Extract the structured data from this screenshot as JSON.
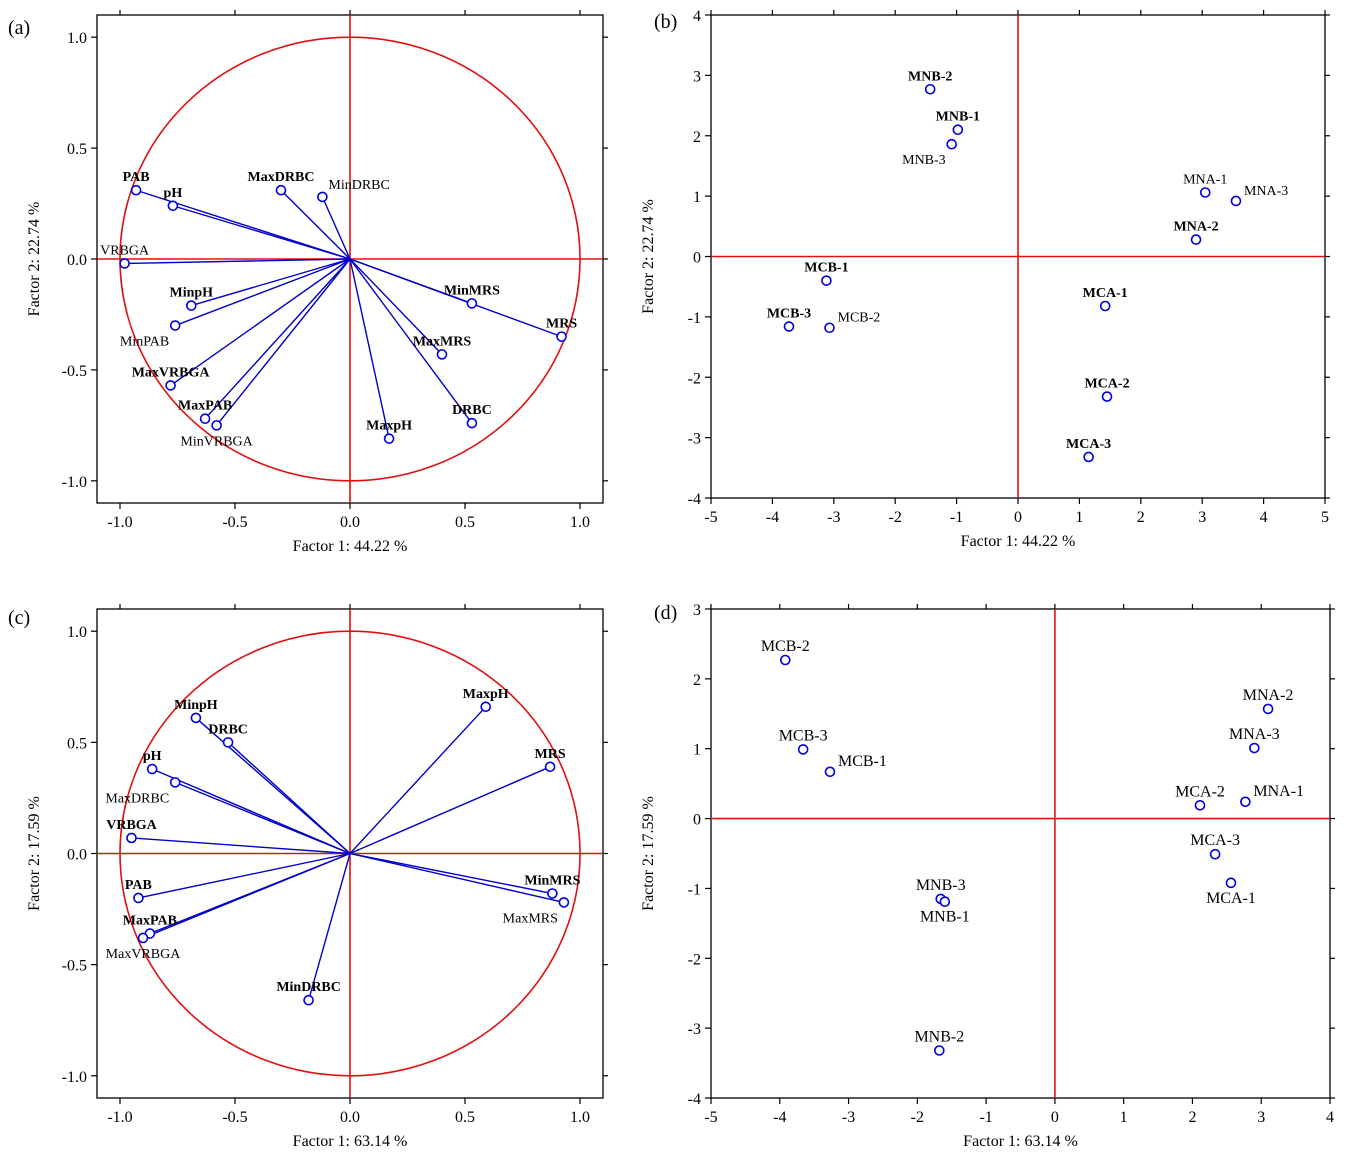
{
  "chart_data": [
    {
      "panel": "(a)",
      "type": "scatter",
      "subtype": "loading-circle",
      "xlabel": "Factor 1: 44.22 %",
      "ylabel": "Factor 2: 22.74 %",
      "xlim": [
        -1.1,
        1.1
      ],
      "ylim": [
        -1.1,
        1.1
      ],
      "xticks": [
        -1.0,
        -0.5,
        0.0,
        0.5,
        1.0
      ],
      "yticks": [
        -1.0,
        -0.5,
        0.0,
        0.5,
        1.0
      ],
      "xtick_labels": [
        "-1.0",
        "-0.5",
        "0.0",
        "0.5",
        "1.0"
      ],
      "ytick_labels": [
        "-1.0",
        "-0.5",
        "0.0",
        "0.5",
        "1.0"
      ],
      "unit_circle": true,
      "vectors_from_origin": true,
      "points": [
        {
          "label": "PAB",
          "x": -0.93,
          "y": 0.31,
          "bold": true,
          "anchor": "above"
        },
        {
          "label": "pH",
          "x": -0.77,
          "y": 0.24,
          "bold": true,
          "anchor": "above"
        },
        {
          "label": "MaxDRBC",
          "x": -0.3,
          "y": 0.31,
          "bold": true,
          "anchor": "above"
        },
        {
          "label": "MinDRBC",
          "x": -0.12,
          "y": 0.28,
          "bold": false,
          "anchor": "right-above"
        },
        {
          "label": "VRBGA",
          "x": -0.98,
          "y": -0.02,
          "bold": false,
          "anchor": "above"
        },
        {
          "label": "MinMRS",
          "x": 0.53,
          "y": -0.2,
          "bold": true,
          "anchor": "above"
        },
        {
          "label": "MRS",
          "x": 0.92,
          "y": -0.35,
          "bold": true,
          "anchor": "above"
        },
        {
          "label": "MinpH",
          "x": -0.69,
          "y": -0.21,
          "bold": true,
          "anchor": "above"
        },
        {
          "label": "MinPAB",
          "x": -0.76,
          "y": -0.3,
          "bold": false,
          "anchor": "below-left"
        },
        {
          "label": "MaxMRS",
          "x": 0.4,
          "y": -0.43,
          "bold": true,
          "anchor": "above"
        },
        {
          "label": "MaxVRBGA",
          "x": -0.78,
          "y": -0.57,
          "bold": true,
          "anchor": "above"
        },
        {
          "label": "MaxPAB",
          "x": -0.63,
          "y": -0.72,
          "bold": true,
          "anchor": "above"
        },
        {
          "label": "MinVRBGA",
          "x": -0.58,
          "y": -0.75,
          "bold": false,
          "anchor": "below"
        },
        {
          "label": "DRBC",
          "x": 0.53,
          "y": -0.74,
          "bold": true,
          "anchor": "above"
        },
        {
          "label": "MaxpH",
          "x": 0.17,
          "y": -0.81,
          "bold": true,
          "anchor": "above"
        }
      ]
    },
    {
      "panel": "(b)",
      "type": "scatter",
      "subtype": "scores",
      "xlabel": "Factor 1: 44.22 %",
      "ylabel": "Factor 2: 22.74 %",
      "xlim": [
        -5,
        5
      ],
      "ylim": [
        -4,
        4
      ],
      "xticks": [
        -5,
        -4,
        -3,
        -2,
        -1,
        0,
        1,
        2,
        3,
        4,
        5
      ],
      "yticks": [
        -4,
        -3,
        -2,
        -1,
        0,
        1,
        2,
        3,
        4
      ],
      "xtick_labels": [
        "-5",
        "-4",
        "-3",
        "-2",
        "-1",
        "0",
        "1",
        "2",
        "3",
        "4",
        "5"
      ],
      "ytick_labels": [
        "-4",
        "-3",
        "-2",
        "-1",
        "0",
        "1",
        "2",
        "3",
        "4"
      ],
      "points": [
        {
          "label": "MNB-2",
          "x": -1.43,
          "y": 2.77,
          "bold": true,
          "anchor": "above"
        },
        {
          "label": "MNB-1",
          "x": -0.98,
          "y": 2.1,
          "bold": true,
          "anchor": "above"
        },
        {
          "label": "MNB-3",
          "x": -1.08,
          "y": 1.86,
          "bold": false,
          "anchor": "below-left"
        },
        {
          "label": "MNA-1",
          "x": 3.05,
          "y": 1.06,
          "bold": false,
          "anchor": "above"
        },
        {
          "label": "MNA-3",
          "x": 3.55,
          "y": 0.92,
          "bold": false,
          "anchor": "above-right"
        },
        {
          "label": "MNA-2",
          "x": 2.9,
          "y": 0.28,
          "bold": true,
          "anchor": "above"
        },
        {
          "label": "MCB-1",
          "x": -3.12,
          "y": -0.4,
          "bold": true,
          "anchor": "above"
        },
        {
          "label": "MCB-3",
          "x": -3.73,
          "y": -1.16,
          "bold": true,
          "anchor": "above"
        },
        {
          "label": "MCB-2",
          "x": -3.07,
          "y": -1.18,
          "bold": false,
          "anchor": "above-right"
        },
        {
          "label": "MCA-1",
          "x": 1.42,
          "y": -0.82,
          "bold": true,
          "anchor": "above"
        },
        {
          "label": "MCA-2",
          "x": 1.45,
          "y": -2.32,
          "bold": true,
          "anchor": "above"
        },
        {
          "label": "MCA-3",
          "x": 1.15,
          "y": -3.32,
          "bold": true,
          "anchor": "above"
        }
      ]
    },
    {
      "panel": "(c)",
      "type": "scatter",
      "subtype": "loading-circle",
      "xlabel": "Factor 1: 63.14 %",
      "ylabel": "Factor 2: 17.59 %",
      "xlim": [
        -1.1,
        1.1
      ],
      "ylim": [
        -1.1,
        1.1
      ],
      "xticks": [
        -1.0,
        -0.5,
        0.0,
        0.5,
        1.0
      ],
      "yticks": [
        -1.0,
        -0.5,
        0.0,
        0.5,
        1.0
      ],
      "xtick_labels": [
        "-1.0",
        "-0.5",
        "0.0",
        "0.5",
        "1.0"
      ],
      "ytick_labels": [
        "-1.0",
        "-0.5",
        "0.0",
        "0.5",
        "1.0"
      ],
      "unit_circle": true,
      "vectors_from_origin": true,
      "points": [
        {
          "label": "MaxpH",
          "x": 0.59,
          "y": 0.66,
          "bold": true,
          "anchor": "above"
        },
        {
          "label": "MinpH",
          "x": -0.67,
          "y": 0.61,
          "bold": true,
          "anchor": "above"
        },
        {
          "label": "DRBC",
          "x": -0.53,
          "y": 0.5,
          "bold": true,
          "anchor": "above"
        },
        {
          "label": "MRS",
          "x": 0.87,
          "y": 0.39,
          "bold": true,
          "anchor": "above"
        },
        {
          "label": "pH",
          "x": -0.86,
          "y": 0.38,
          "bold": true,
          "anchor": "above"
        },
        {
          "label": "MaxDRBC",
          "x": -0.76,
          "y": 0.32,
          "bold": false,
          "anchor": "below-left"
        },
        {
          "label": "VRBGA",
          "x": -0.95,
          "y": 0.07,
          "bold": true,
          "anchor": "above"
        },
        {
          "label": "PAB",
          "x": -0.92,
          "y": -0.2,
          "bold": true,
          "anchor": "above"
        },
        {
          "label": "MinMRS",
          "x": 0.88,
          "y": -0.18,
          "bold": true,
          "anchor": "above"
        },
        {
          "label": "MaxMRS",
          "x": 0.93,
          "y": -0.22,
          "bold": false,
          "anchor": "below-left"
        },
        {
          "label": "MaxPAB",
          "x": -0.87,
          "y": -0.36,
          "bold": true,
          "anchor": "above"
        },
        {
          "label": "MaxVRBGA",
          "x": -0.9,
          "y": -0.38,
          "bold": false,
          "anchor": "below"
        },
        {
          "label": "MinDRBC",
          "x": -0.18,
          "y": -0.66,
          "bold": true,
          "anchor": "above"
        }
      ]
    },
    {
      "panel": "(d)",
      "type": "scatter",
      "subtype": "scores",
      "xlabel": "Factor 1: 63.14 %",
      "ylabel": "Factor 2: 17.59 %",
      "xlim": [
        -5,
        4
      ],
      "ylim": [
        -4,
        3
      ],
      "xticks": [
        -5,
        -4,
        -3,
        -2,
        -1,
        0,
        1,
        2,
        3,
        4
      ],
      "yticks": [
        -4,
        -3,
        -2,
        -1,
        0,
        1,
        2,
        3
      ],
      "xtick_labels": [
        "-5",
        "-4",
        "-3",
        "-2",
        "-1",
        "0",
        "1",
        "2",
        "3",
        "4"
      ],
      "ytick_labels": [
        "-4",
        "-3",
        "-2",
        "-1",
        "0",
        "1",
        "2",
        "3"
      ],
      "points": [
        {
          "label": "MCB-2",
          "x": -3.92,
          "y": 2.27,
          "bold": false,
          "anchor": "above",
          "large": true
        },
        {
          "label": "MCB-3",
          "x": -3.66,
          "y": 0.99,
          "bold": false,
          "anchor": "above",
          "large": true
        },
        {
          "label": "MCB-1",
          "x": -3.27,
          "y": 0.67,
          "bold": false,
          "anchor": "above-right",
          "large": true
        },
        {
          "label": "MNA-2",
          "x": 3.1,
          "y": 1.57,
          "bold": false,
          "anchor": "above",
          "large": true
        },
        {
          "label": "MNA-3",
          "x": 2.9,
          "y": 1.01,
          "bold": false,
          "anchor": "above",
          "large": true
        },
        {
          "label": "MCA-2",
          "x": 2.11,
          "y": 0.19,
          "bold": false,
          "anchor": "above",
          "large": true
        },
        {
          "label": "MNA-1",
          "x": 2.77,
          "y": 0.24,
          "bold": false,
          "anchor": "above-right",
          "large": true
        },
        {
          "label": "MCA-3",
          "x": 2.33,
          "y": -0.51,
          "bold": false,
          "anchor": "above",
          "large": true
        },
        {
          "label": "MCA-1",
          "x": 2.56,
          "y": -0.92,
          "bold": false,
          "anchor": "below",
          "large": true
        },
        {
          "label": "MNB-3",
          "x": -1.66,
          "y": -1.15,
          "bold": false,
          "anchor": "above",
          "large": true
        },
        {
          "label": "MNB-1",
          "x": -1.6,
          "y": -1.19,
          "bold": false,
          "anchor": "below",
          "large": true
        },
        {
          "label": "MNB-2",
          "x": -1.68,
          "y": -3.32,
          "bold": false,
          "anchor": "above",
          "large": true
        }
      ]
    }
  ],
  "colors": {
    "marker": "#0000e0",
    "vector": "#0000c8",
    "reference": "#e01010",
    "frame": "#000000"
  }
}
